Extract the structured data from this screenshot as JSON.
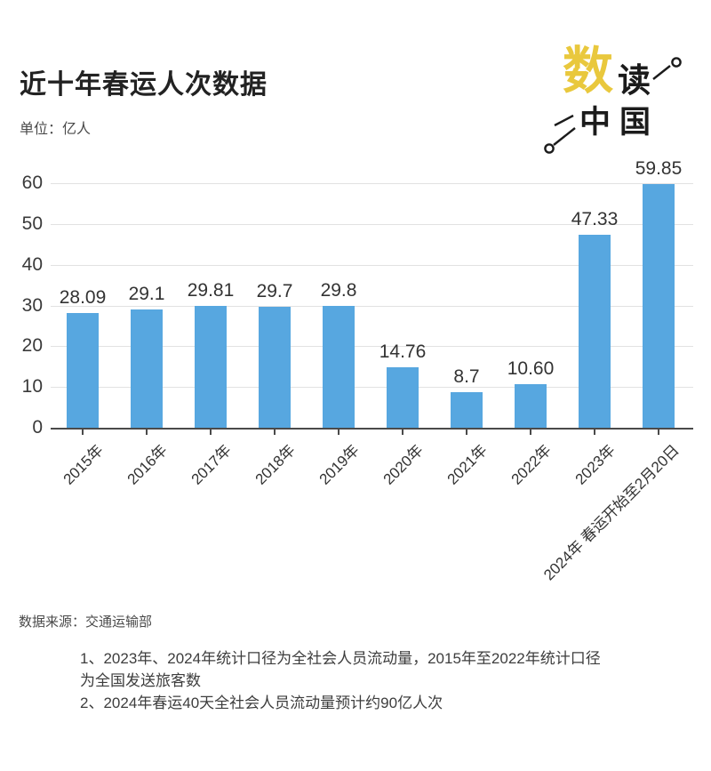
{
  "header": {
    "title": "近十年春运人次数据",
    "unit_label": "单位：亿人"
  },
  "logo": {
    "char_shu": "数",
    "char_du": "读",
    "char_zhong": "中",
    "char_guo": "国",
    "accent_color": "#e9c83d",
    "ink_color": "#1b1b1b"
  },
  "chart_data": {
    "type": "bar",
    "title": "近十年春运人次数据",
    "unit": "亿人",
    "categories": [
      "2015年",
      "2016年",
      "2017年",
      "2018年",
      "2019年",
      "2020年",
      "2021年",
      "2022年",
      "2023年",
      "2024年 春运开始至2月20日"
    ],
    "values": [
      28.09,
      29.1,
      29.81,
      29.7,
      29.8,
      14.76,
      8.7,
      10.6,
      47.33,
      59.85
    ],
    "value_labels": [
      "28.09",
      "29.1",
      "29.81",
      "29.7",
      "29.8",
      "14.76",
      "8.7",
      "10.60",
      "47.33",
      "59.85"
    ],
    "ylim": [
      0,
      60
    ],
    "yticks": [
      0,
      10,
      20,
      30,
      40,
      50,
      60
    ],
    "grid": true,
    "legend": "none",
    "bar_color": "#57a7e0",
    "gridline_color": "#e2e2e2",
    "axis_color": "#4a4a4a"
  },
  "footer": {
    "source": "数据来源：交通运输部",
    "notes": [
      "1、2023年、2024年统计口径为全社会人员流动量，2015年至2022年统计口径",
      "为全国发送旅客数",
      "2、2024年春运40天全社会人员流动量预计约90亿人次"
    ]
  }
}
